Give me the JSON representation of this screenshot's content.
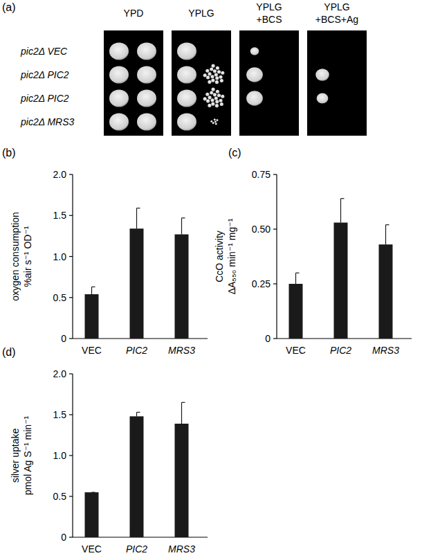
{
  "spot_assay": {
    "panel": "(a)",
    "columns": [
      [
        "YPD"
      ],
      [
        "YPLG"
      ],
      [
        "YPLG",
        "+BCS"
      ],
      [
        "YPLG",
        "+BCS+Ag"
      ]
    ],
    "rows": [
      "pic2Δ VEC",
      "pic2Δ PIC2",
      "pic2Δ PIC2",
      "pic2Δ MRS3"
    ]
  },
  "chart_data": [
    {
      "type": "bar",
      "title": "(b)",
      "y_label": [
        "oxygen consumption",
        "%air s⁻¹ OD⁻¹"
      ],
      "categories": [
        "VEC",
        "PIC2",
        "MRS3"
      ],
      "values": [
        0.54,
        1.34,
        1.27
      ],
      "errors": [
        0.09,
        0.25,
        0.2
      ],
      "color": "#1a1a1a",
      "ylim": [
        0,
        2
      ],
      "yticks": [
        0,
        0.5,
        {
          "value": 1,
          "label": "1.0"
        },
        1.5,
        {
          "value": 2,
          "label": "2.0"
        }
      ]
    },
    {
      "type": "bar",
      "title": "(c)",
      "y_label": [
        "CcO activity",
        "ΔA₅₅₀ min⁻¹ mg⁻¹"
      ],
      "categories": [
        "VEC",
        "PIC2",
        "MRS3"
      ],
      "values": [
        0.25,
        0.53,
        0.43
      ],
      "errors": [
        0.05,
        0.11,
        0.09
      ],
      "color": "#1a1a1a",
      "ylim": [
        0,
        0.75
      ],
      "yticks": [
        0,
        0.25,
        {
          "value": 0.5,
          "label": "0.50"
        },
        0.75
      ]
    },
    {
      "type": "bar",
      "title": "(d)",
      "y_label": [
        "silver uptake",
        "pmol Ag S⁻¹ min⁻¹"
      ],
      "categories": [
        "VEC",
        "PIC2",
        "MRS3"
      ],
      "values": [
        0.55,
        1.48,
        1.39
      ],
      "errors": [
        0,
        0.05,
        0.26
      ],
      "color": "#1a1a1a",
      "ylim": [
        0,
        2
      ],
      "yticks": [
        0,
        0.5,
        {
          "value": 1,
          "label": "1.0"
        },
        1.5,
        {
          "value": 2,
          "label": "2.0"
        }
      ]
    }
  ]
}
